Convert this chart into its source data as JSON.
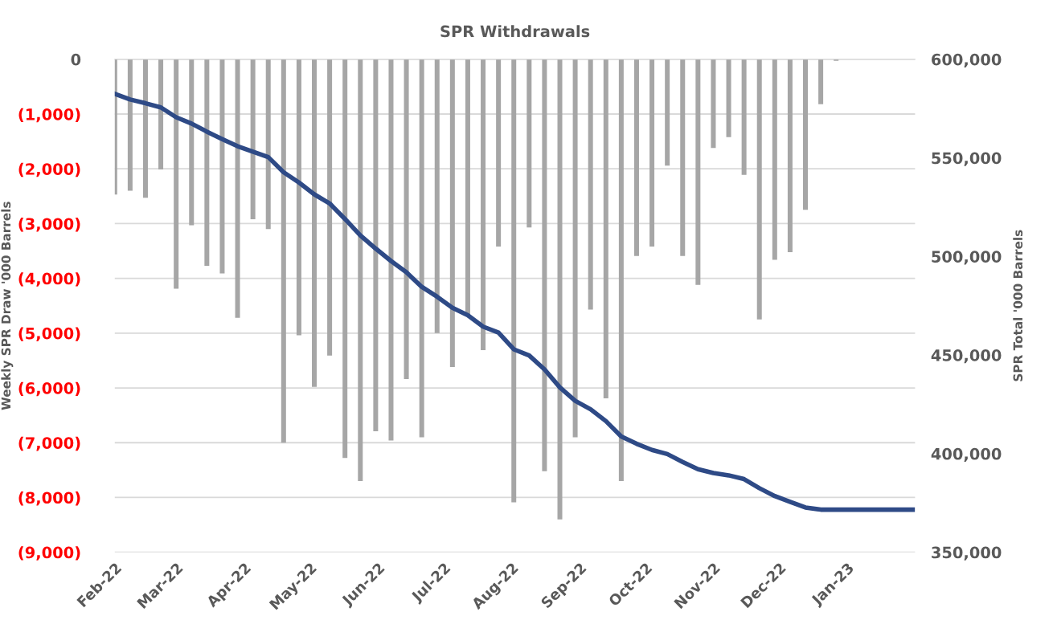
{
  "chart_data": {
    "type": "bar",
    "title": "SPR Withdrawals",
    "ylabel": "Weekly SPR Draw '000 Barrels",
    "y2label": "SPR Total '000 Barrels",
    "x": [
      "2022-02-01",
      "2022-02-08",
      "2022-02-15",
      "2022-02-22",
      "2022-03-01",
      "2022-03-08",
      "2022-03-15",
      "2022-03-22",
      "2022-03-29",
      "2022-04-05",
      "2022-04-12",
      "2022-04-19",
      "2022-04-26",
      "2022-05-03",
      "2022-05-10",
      "2022-05-17",
      "2022-05-24",
      "2022-05-31",
      "2022-06-07",
      "2022-06-14",
      "2022-06-21",
      "2022-06-28",
      "2022-07-05",
      "2022-07-12",
      "2022-07-19",
      "2022-07-26",
      "2022-08-02",
      "2022-08-09",
      "2022-08-16",
      "2022-08-23",
      "2022-08-30",
      "2022-09-06",
      "2022-09-13",
      "2022-09-20",
      "2022-09-27",
      "2022-10-04",
      "2022-10-11",
      "2022-10-18",
      "2022-10-25",
      "2022-11-01",
      "2022-11-08",
      "2022-11-15",
      "2022-11-22",
      "2022-11-29",
      "2022-12-06",
      "2022-12-13",
      "2022-12-20",
      "2022-12-27",
      "2023-01-03",
      "2023-01-10",
      "2023-01-17",
      "2023-01-24",
      "2023-01-31"
    ],
    "series": [
      {
        "color": "#a6a6a6",
        "values": [
          -2470,
          -2400,
          -2530,
          -2010,
          -4190,
          -3030,
          -3770,
          -3910,
          -4720,
          -2920,
          -3100,
          -7000,
          -5040,
          -5980,
          -5410,
          -7280,
          -7700,
          -6790,
          -6960,
          -5840,
          -6900,
          -5000,
          -5620,
          -4660,
          -5310,
          -3420,
          -8090,
          -3070,
          -7520,
          -8400,
          -6900,
          -4570,
          -6190,
          -7700,
          -3590,
          -3420,
          -1940,
          -3590,
          -4120,
          -1620,
          -1420,
          -2110,
          -4750,
          -3660,
          -3520,
          -2750,
          -820,
          -30,
          0,
          0,
          0,
          0,
          0
        ]
      },
      {
        "type": "line",
        "axis": "y2",
        "color": "#2e4a86",
        "values": [
          582500,
          579600,
          577700,
          575600,
          570600,
          567400,
          563300,
          559500,
          555900,
          553100,
          550400,
          542700,
          537500,
          531500,
          526900,
          519000,
          510700,
          504000,
          497700,
          492000,
          484600,
          479600,
          474000,
          470200,
          464400,
          461400,
          452900,
          449800,
          442700,
          433600,
          426800,
          422500,
          416500,
          408700,
          405000,
          401900,
          399800,
          395800,
          392100,
          390200,
          389000,
          387100,
          382500,
          378500,
          375600,
          372700,
          371600,
          371600,
          371600,
          371600,
          371600,
          371600,
          371600
        ]
      }
    ],
    "xlim": [
      "2022-02-01",
      "2023-02-01"
    ],
    "xticks": [
      {
        "value": "2022-02-01",
        "label": "Feb-22"
      },
      {
        "value": "2022-03-01",
        "label": "Mar-22"
      },
      {
        "value": "2022-04-01",
        "label": "Apr-22"
      },
      {
        "value": "2022-05-01",
        "label": "May-22"
      },
      {
        "value": "2022-06-01",
        "label": "Jun-22"
      },
      {
        "value": "2022-07-01",
        "label": "Jul-22"
      },
      {
        "value": "2022-08-01",
        "label": "Aug-22"
      },
      {
        "value": "2022-09-01",
        "label": "Sep-22"
      },
      {
        "value": "2022-10-01",
        "label": "Oct-22"
      },
      {
        "value": "2022-11-01",
        "label": "Nov-22"
      },
      {
        "value": "2022-12-01",
        "label": "Dec-22"
      },
      {
        "value": "2023-01-01",
        "label": "Jan-23"
      }
    ],
    "ylim": [
      -9000,
      0
    ],
    "yticks": [
      {
        "value": -9000,
        "label": "(9,000)"
      },
      {
        "value": -8000,
        "label": "(8,000)"
      },
      {
        "value": -7000,
        "label": "(7,000)"
      },
      {
        "value": -6000,
        "label": "(6,000)"
      },
      {
        "value": -5000,
        "label": "(5,000)"
      },
      {
        "value": -4000,
        "label": "(4,000)"
      },
      {
        "value": -3000,
        "label": "(3,000)"
      },
      {
        "value": -2000,
        "label": "(2,000)"
      },
      {
        "value": -1000,
        "label": "(1,000)"
      },
      0
    ],
    "y2lim": [
      350000,
      600000
    ],
    "y2ticks": [
      {
        "value": 350000,
        "label": "350,000"
      },
      {
        "value": 400000,
        "label": "400,000"
      },
      {
        "value": 450000,
        "label": "450,000"
      },
      {
        "value": 500000,
        "label": "500,000"
      },
      {
        "value": 550000,
        "label": "550,000"
      },
      {
        "value": 600000,
        "label": "600,000"
      }
    ],
    "grid": "y",
    "legend": false
  }
}
